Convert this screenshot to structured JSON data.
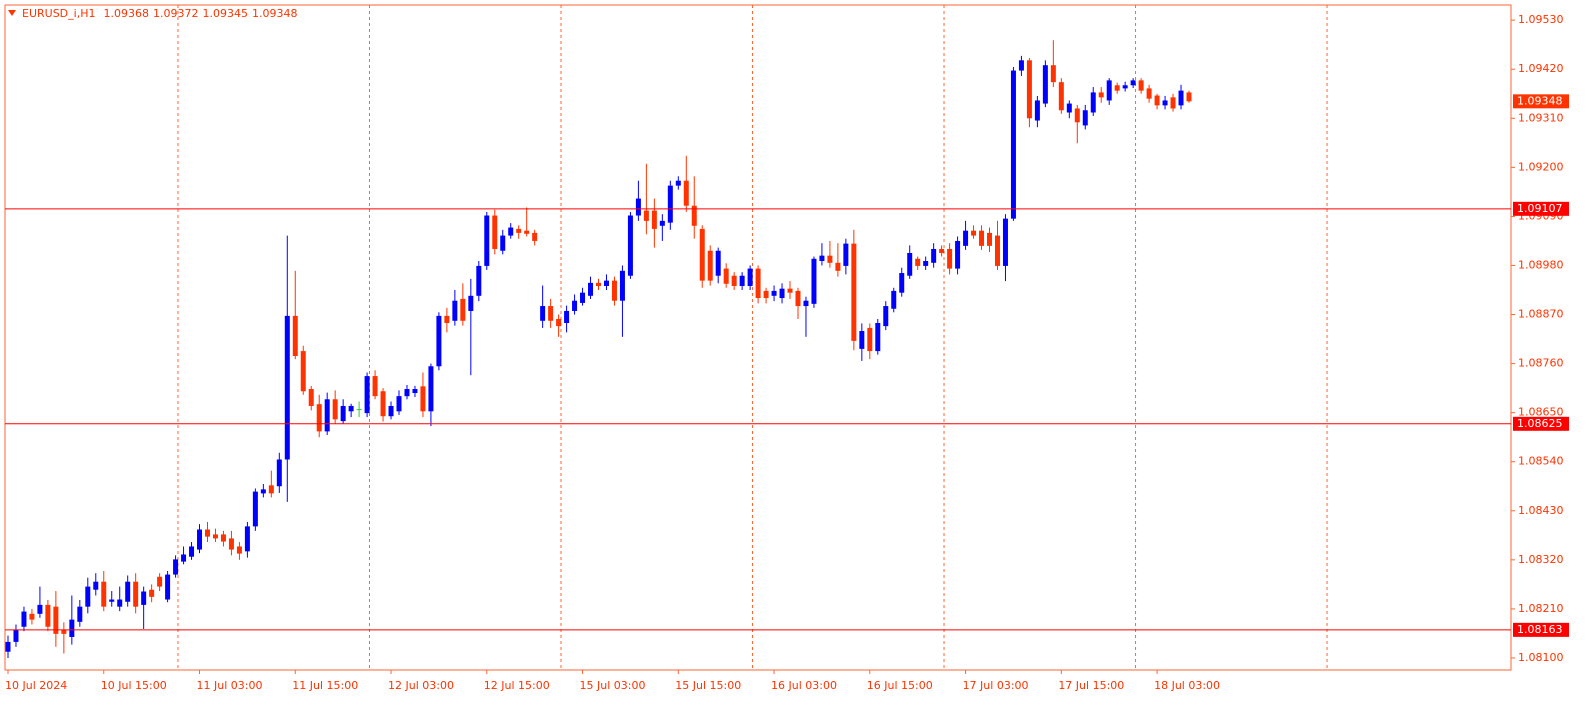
{
  "chart_data": {
    "type": "candlestick",
    "title": "EURUSD_i,H1",
    "categories": [
      "10 Jul 2024",
      null,
      null,
      null,
      null,
      null,
      null,
      null,
      null,
      null,
      null,
      null,
      "10 Jul 15:00",
      null,
      null,
      null,
      null,
      null,
      null,
      null,
      null,
      null,
      null,
      null,
      "11 Jul 03:00",
      null,
      null,
      null,
      null,
      null,
      null,
      null,
      null,
      null,
      null,
      null,
      "11 Jul 15:00",
      null,
      null,
      null,
      null,
      null,
      null,
      null,
      null,
      null,
      null,
      null,
      "12 Jul 03:00",
      null,
      null,
      null,
      null,
      null,
      null,
      null,
      null,
      null,
      null,
      null,
      "12 Jul 15:00",
      null,
      null,
      null,
      null,
      null,
      null,
      null,
      null,
      null,
      null,
      null,
      "15 Jul 03:00",
      null,
      null,
      null,
      null,
      null,
      null,
      null,
      null,
      null,
      null,
      null,
      "15 Jul 15:00",
      null,
      null,
      null,
      null,
      null,
      null,
      null,
      null,
      null,
      null,
      null,
      "16 Jul 03:00",
      null,
      null,
      null,
      null,
      null,
      null,
      null,
      null,
      null,
      null,
      null,
      "16 Jul 15:00",
      null,
      null,
      null,
      null,
      null,
      null,
      null,
      null,
      null,
      null,
      null,
      "17 Jul 03:00",
      null,
      null,
      null,
      null,
      null,
      null,
      null,
      null,
      null,
      null,
      null,
      "17 Jul 15:00",
      null,
      null,
      null,
      null,
      null,
      null,
      null,
      null,
      null,
      null,
      null,
      "18 Jul 03:00",
      null,
      null,
      null,
      null
    ],
    "candles": [
      [
        1.08114,
        1.0815,
        1.081,
        1.08136
      ],
      [
        1.08136,
        1.08175,
        1.08125,
        1.08163
      ],
      [
        1.0817,
        1.08215,
        1.0816,
        1.08204
      ],
      [
        1.08199,
        1.0821,
        1.08175,
        1.08186
      ],
      [
        1.08199,
        1.0826,
        1.0819,
        1.08219
      ],
      [
        1.08219,
        1.0823,
        1.0816,
        1.0817
      ],
      [
        1.08215,
        1.0825,
        1.08125,
        1.08154
      ],
      [
        1.08163,
        1.0818,
        1.0811,
        1.08154
      ],
      [
        1.08147,
        1.0824,
        1.0813,
        1.08186
      ],
      [
        1.08181,
        1.0823,
        1.0817,
        1.08215
      ],
      [
        1.08215,
        1.0828,
        1.082,
        1.0826
      ],
      [
        1.08253,
        1.0829,
        1.0824,
        1.08271
      ],
      [
        1.08271,
        1.08295,
        1.08205,
        1.08215
      ],
      [
        1.08226,
        1.0825,
        1.08215,
        1.08231
      ],
      [
        1.08215,
        1.0826,
        1.08205,
        1.08231
      ],
      [
        1.08226,
        1.08285,
        1.08215,
        1.08271
      ],
      [
        1.08271,
        1.0829,
        1.082,
        1.08215
      ],
      [
        1.08219,
        1.0826,
        1.08165,
        1.08249
      ],
      [
        1.08253,
        1.08265,
        1.08225,
        1.08237
      ],
      [
        1.08282,
        1.0829,
        1.0825,
        1.0826
      ],
      [
        1.08231,
        1.08295,
        1.08225,
        1.08287
      ],
      [
        1.08287,
        1.0833,
        1.0828,
        1.08321
      ],
      [
        1.08316,
        1.0835,
        1.0831,
        1.08332
      ],
      [
        1.08327,
        1.0836,
        1.0832,
        1.0835
      ],
      [
        1.08343,
        1.084,
        1.08335,
        1.08388
      ],
      [
        1.08388,
        1.08405,
        1.0836,
        1.08372
      ],
      [
        1.08377,
        1.0839,
        1.0836,
        1.08368
      ],
      [
        1.08377,
        1.08385,
        1.0835,
        1.08361
      ],
      [
        1.08368,
        1.08385,
        1.0833,
        1.08343
      ],
      [
        1.0835,
        1.0836,
        1.0832,
        1.08334
      ],
      [
        1.08339,
        1.08405,
        1.08325,
        1.08395
      ],
      [
        1.08395,
        1.0848,
        1.08385,
        1.08473
      ],
      [
        1.08469,
        1.0849,
        1.0846,
        1.08478
      ],
      [
        1.08487,
        1.0852,
        1.0846,
        1.08469
      ],
      [
        1.08485,
        1.0856,
        1.0847,
        1.08545
      ],
      [
        1.08545,
        1.09047,
        1.0845,
        1.08867
      ],
      [
        1.08867,
        1.08968,
        1.0877,
        1.08777
      ],
      [
        1.08788,
        1.088,
        1.0869,
        1.08698
      ],
      [
        1.08703,
        1.0871,
        1.08655,
        1.08665
      ],
      [
        1.08669,
        1.0869,
        1.08595,
        1.08608
      ],
      [
        1.08608,
        1.08695,
        1.086,
        1.0868
      ],
      [
        1.0868,
        1.087,
        1.08625,
        1.08635
      ],
      [
        1.08631,
        1.0868,
        1.08625,
        1.08665
      ],
      [
        1.08653,
        1.0867,
        1.0864,
        1.08665
      ],
      [
        1.08658,
        1.08675,
        1.0864,
        1.08658
      ],
      [
        1.08649,
        1.0874,
        1.0864,
        1.08732
      ],
      [
        1.08732,
        1.08745,
        1.0868,
        1.08687
      ],
      [
        1.08698,
        1.08705,
        1.0863,
        1.08642
      ],
      [
        1.08642,
        1.08675,
        1.08635,
        1.08665
      ],
      [
        1.08653,
        1.087,
        1.08645,
        1.08687
      ],
      [
        1.08687,
        1.08712,
        1.0868,
        1.08703
      ],
      [
        1.08694,
        1.0871,
        1.08685,
        1.08703
      ],
      [
        1.08709,
        1.0874,
        1.0864,
        1.08653
      ],
      [
        1.08653,
        1.0876,
        1.0862,
        1.08754
      ],
      [
        1.08754,
        1.08875,
        1.08745,
        1.08867
      ],
      [
        1.08867,
        1.08885,
        1.0883,
        1.08851
      ],
      [
        1.08856,
        1.08925,
        1.08845,
        1.08901
      ],
      [
        1.08905,
        1.0894,
        1.08845,
        1.08856
      ],
      [
        1.08878,
        1.0895,
        1.08734,
        1.08912
      ],
      [
        1.08912,
        1.0899,
        1.089,
        1.08979
      ],
      [
        1.08979,
        1.091,
        1.0897,
        1.09092
      ],
      [
        1.09092,
        1.09105,
        1.09005,
        1.09017
      ],
      [
        1.09013,
        1.0906,
        1.09005,
        1.09047
      ],
      [
        1.09047,
        1.09075,
        1.0904,
        1.09065
      ],
      [
        1.09062,
        1.0907,
        1.0904,
        1.09053
      ],
      [
        1.09058,
        1.0911,
        1.09045,
        1.09051
      ],
      [
        1.09053,
        1.0906,
        1.09025,
        1.09035
      ],
      [
        1.08856,
        1.08935,
        1.0884,
        1.08889
      ],
      [
        1.08889,
        1.08905,
        1.0884,
        1.08856
      ],
      [
        1.0886,
        1.0887,
        1.0882,
        1.08844
      ],
      [
        1.08851,
        1.0889,
        1.0883,
        1.08878
      ],
      [
        1.08878,
        1.08915,
        1.0887,
        1.08901
      ],
      [
        1.08896,
        1.0893,
        1.0889,
        1.08919
      ],
      [
        1.08912,
        1.08955,
        1.08905,
        1.08941
      ],
      [
        1.08941,
        1.0895,
        1.08925,
        1.08934
      ],
      [
        1.08934,
        1.0896,
        1.08925,
        1.08946
      ],
      [
        1.08946,
        1.08955,
        1.0889,
        1.08901
      ],
      [
        1.08901,
        1.0898,
        1.0882,
        1.08968
      ],
      [
        1.08957,
        1.091,
        1.0895,
        1.09092
      ],
      [
        1.09092,
        1.0917,
        1.0908,
        1.0913
      ],
      [
        1.09103,
        1.09208,
        1.0905,
        1.0908
      ],
      [
        1.09103,
        1.0913,
        1.0902,
        1.09062
      ],
      [
        1.09069,
        1.09095,
        1.09035,
        1.0908
      ],
      [
        1.09076,
        1.0917,
        1.0906,
        1.09159
      ],
      [
        1.09159,
        1.0918,
        1.0915,
        1.0917
      ],
      [
        1.0917,
        1.09226,
        1.091,
        1.09114
      ],
      [
        1.09114,
        1.0918,
        1.0904,
        1.09069
      ],
      [
        1.09062,
        1.0907,
        1.0893,
        1.08946
      ],
      [
        1.09013,
        1.09025,
        1.08935,
        1.08946
      ],
      [
        1.08957,
        1.0902,
        1.0894,
        1.09013
      ],
      [
        1.08973,
        1.08985,
        1.0893,
        1.08939
      ],
      [
        1.08957,
        1.08965,
        1.08925,
        1.08934
      ],
      [
        1.08934,
        1.08965,
        1.08925,
        1.08957
      ],
      [
        1.08934,
        1.0898,
        1.08925,
        1.08973
      ],
      [
        1.08973,
        1.0898,
        1.08895,
        1.08907
      ],
      [
        1.08923,
        1.0893,
        1.08895,
        1.08907
      ],
      [
        1.08912,
        1.08935,
        1.089,
        1.08923
      ],
      [
        1.08907,
        1.0894,
        1.08895,
        1.08928
      ],
      [
        1.08928,
        1.08945,
        1.08905,
        1.08919
      ],
      [
        1.08923,
        1.0893,
        1.0886,
        1.08889
      ],
      [
        1.08889,
        1.0891,
        1.0882,
        1.08901
      ],
      [
        1.08894,
        1.09,
        1.08885,
        1.08995
      ],
      [
        1.0899,
        1.0903,
        1.0898,
        1.09002
      ],
      [
        1.09002,
        1.09035,
        1.08975,
        1.08986
      ],
      [
        1.08986,
        1.0903,
        1.08955,
        1.08968
      ],
      [
        1.08979,
        1.0904,
        1.0896,
        1.09029
      ],
      [
        1.09029,
        1.0906,
        1.0879,
        1.08811
      ],
      [
        1.08793,
        1.0885,
        1.08766,
        1.08833
      ],
      [
        1.0884,
        1.0885,
        1.0877,
        1.08788
      ],
      [
        1.08788,
        1.0886,
        1.0878,
        1.08851
      ],
      [
        1.08844,
        1.089,
        1.08835,
        1.08889
      ],
      [
        1.08883,
        1.0893,
        1.08875,
        1.08923
      ],
      [
        1.08919,
        1.08975,
        1.0891,
        1.08963
      ],
      [
        1.08957,
        1.09025,
        1.0895,
        1.09008
      ],
      [
        1.08995,
        1.09,
        1.0897,
        1.08979
      ],
      [
        1.08979,
        1.09,
        1.0897,
        1.0899
      ],
      [
        1.08986,
        1.0903,
        1.08975,
        1.09017
      ],
      [
        1.09017,
        1.09025,
        1.09,
        1.09008
      ],
      [
        1.09017,
        1.0903,
        1.0896,
        1.08973
      ],
      [
        1.08973,
        1.09045,
        1.0896,
        1.09035
      ],
      [
        1.09024,
        1.0908,
        1.09015,
        1.09058
      ],
      [
        1.09058,
        1.0907,
        1.0904,
        1.09047
      ],
      [
        1.09058,
        1.0907,
        1.09015,
        1.09024
      ],
      [
        1.09053,
        1.09065,
        1.0901,
        1.09024
      ],
      [
        1.09047,
        1.0908,
        1.0897,
        1.08979
      ],
      [
        1.08979,
        1.09095,
        1.08945,
        1.09085
      ],
      [
        1.09085,
        1.09425,
        1.0908,
        1.09417
      ],
      [
        1.09417,
        1.0945,
        1.09405,
        1.0944
      ],
      [
        1.0944,
        1.09445,
        1.0929,
        1.0931
      ],
      [
        1.09305,
        1.0936,
        1.0929,
        1.0935
      ],
      [
        1.09343,
        1.0944,
        1.09335,
        1.09429
      ],
      [
        1.09429,
        1.09485,
        1.0938,
        1.09391
      ],
      [
        1.09391,
        1.094,
        1.0932,
        1.09328
      ],
      [
        1.09323,
        1.0935,
        1.0931,
        1.09343
      ],
      [
        1.09332,
        1.0934,
        1.09254,
        1.09301
      ],
      [
        1.09294,
        1.0934,
        1.09285,
        1.09328
      ],
      [
        1.09323,
        1.0938,
        1.09315,
        1.09368
      ],
      [
        1.09368,
        1.0938,
        1.09345,
        1.09357
      ],
      [
        1.0935,
        1.094,
        1.0934,
        1.09395
      ],
      [
        1.09384,
        1.0939,
        1.09365,
        1.09372
      ],
      [
        1.09377,
        1.09392,
        1.0937,
        1.09384
      ],
      [
        1.09384,
        1.094,
        1.09378,
        1.09395
      ],
      [
        1.09395,
        1.094,
        1.09365,
        1.09372
      ],
      [
        1.09377,
        1.09385,
        1.09345,
        1.09354
      ],
      [
        1.09361,
        1.09365,
        1.0933,
        1.09339
      ],
      [
        1.09339,
        1.0936,
        1.0933,
        1.0935
      ],
      [
        1.09357,
        1.09365,
        1.09325,
        1.09332
      ],
      [
        1.09339,
        1.09385,
        1.0933,
        1.09372
      ],
      [
        1.09368,
        1.09372,
        1.09345,
        1.09348
      ]
    ],
    "ylim": [
      1.08073,
      1.09564
    ],
    "yticks": [
      {
        "value": 1.0953,
        "label": "1.09530"
      },
      {
        "value": 1.0942,
        "label": "1.09420"
      },
      {
        "value": 1.0931,
        "label": "1.09310"
      },
      {
        "value": 1.092,
        "label": "1.09200"
      },
      {
        "value": 1.0909,
        "label": "1.09090"
      },
      {
        "value": 1.0898,
        "label": "1.08980"
      },
      {
        "value": 1.0887,
        "label": "1.08870"
      },
      {
        "value": 1.0876,
        "label": "1.08760"
      },
      {
        "value": 1.0865,
        "label": "1.08650"
      },
      {
        "value": 1.0854,
        "label": "1.08540"
      },
      {
        "value": 1.0843,
        "label": "1.08430"
      },
      {
        "value": 1.0832,
        "label": "1.08320"
      },
      {
        "value": 1.0821,
        "label": "1.08210"
      },
      {
        "value": 1.081,
        "label": "1.08100"
      }
    ],
    "hlines": [
      1.09107,
      1.08625,
      1.08163
    ],
    "grid": true,
    "colors": {
      "bull": "#0000ff",
      "bear": "#ff3300",
      "doji": "#33cc33",
      "hline": "#ff0000",
      "grid": "#ff6633",
      "price": "#ff3300"
    }
  }
}
